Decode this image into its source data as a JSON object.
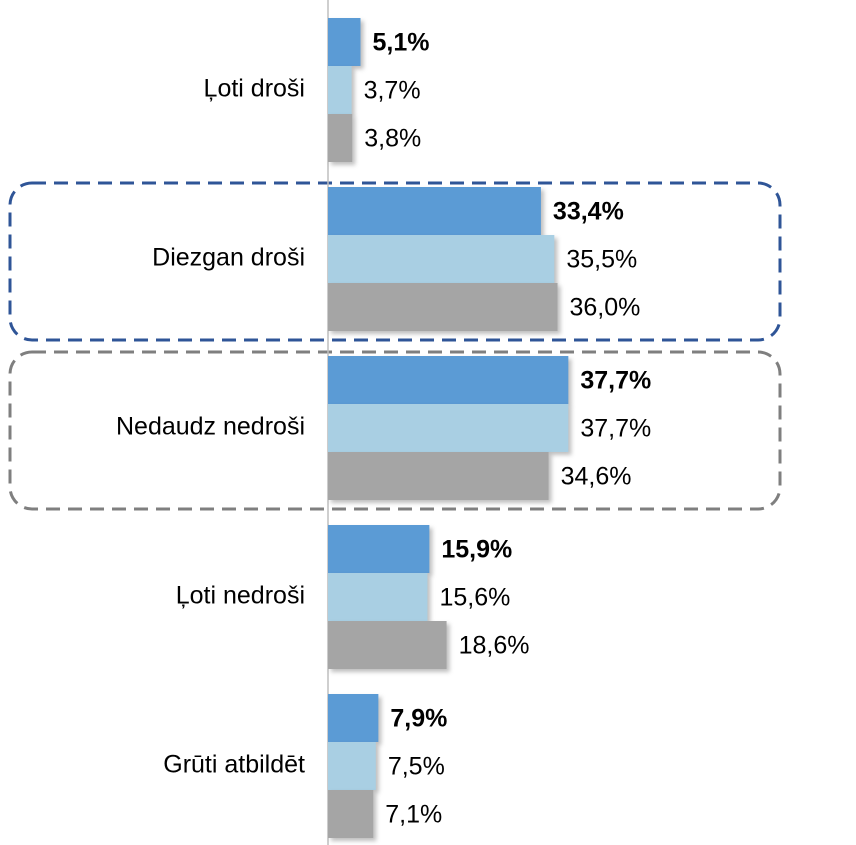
{
  "chart_data": {
    "type": "bar",
    "orientation": "horizontal",
    "categories": [
      "Ļoti droši",
      "Diezgan droši",
      "Nedaudz nedroši",
      "Ļoti nedroši",
      "Grūti atbildēt"
    ],
    "series": [
      {
        "color": "#5b9bd5",
        "bold_labels": true,
        "values": [
          5.1,
          33.4,
          37.7,
          15.9,
          7.9
        ],
        "value_labels": [
          "5,1%",
          "33,4%",
          "37,7%",
          "15,9%",
          "7,9%"
        ]
      },
      {
        "color": "#a9cfe3",
        "values": [
          3.7,
          35.5,
          37.7,
          15.6,
          7.5
        ],
        "value_labels": [
          "3,7%",
          "35,5%",
          "37,7%",
          "15,6%",
          "7,5%"
        ]
      },
      {
        "color": "#a5a5a5",
        "values": [
          3.8,
          36.0,
          34.6,
          18.6,
          7.1
        ],
        "value_labels": [
          "3,8%",
          "36,0%",
          "34,6%",
          "18,6%",
          "7,1%"
        ]
      }
    ],
    "xlim": [
      0,
      80
    ]
  }
}
